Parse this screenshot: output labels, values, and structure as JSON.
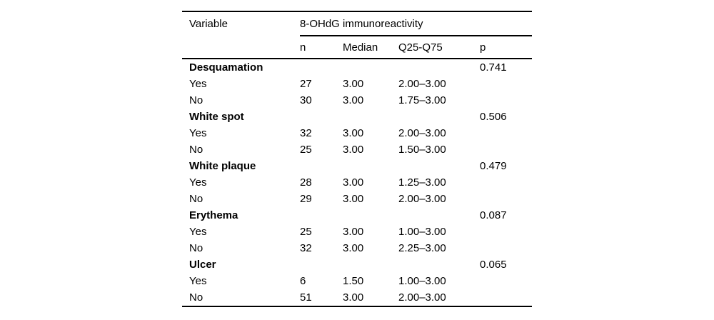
{
  "table": {
    "headers": {
      "variable": "Variable",
      "group": "8-OHdG immunoreactivity",
      "n": "n",
      "median": "Median",
      "q": "Q25-Q75",
      "p": "p"
    },
    "rows": [
      {
        "label": "Desquamation",
        "bold": true,
        "n": "",
        "median": "",
        "q": "",
        "p": "0.741"
      },
      {
        "label": "Yes",
        "bold": false,
        "n": "27",
        "median": "3.00",
        "q": "2.00–3.00",
        "p": ""
      },
      {
        "label": "No",
        "bold": false,
        "n": "30",
        "median": "3.00",
        "q": "1.75–3.00",
        "p": ""
      },
      {
        "label": "White spot",
        "bold": true,
        "n": "",
        "median": "",
        "q": "",
        "p": "0.506"
      },
      {
        "label": "Yes",
        "bold": false,
        "n": "32",
        "median": "3.00",
        "q": "2.00–3.00",
        "p": ""
      },
      {
        "label": "No",
        "bold": false,
        "n": "25",
        "median": "3.00",
        "q": "1.50–3.00",
        "p": ""
      },
      {
        "label": "White plaque",
        "bold": true,
        "n": "",
        "median": "",
        "q": "",
        "p": "0.479"
      },
      {
        "label": "Yes",
        "bold": false,
        "n": "28",
        "median": "3.00",
        "q": "1.25–3.00",
        "p": ""
      },
      {
        "label": "No",
        "bold": false,
        "n": "29",
        "median": "3.00",
        "q": "2.00–3.00",
        "p": ""
      },
      {
        "label": "Erythema",
        "bold": true,
        "n": "",
        "median": "",
        "q": "",
        "p": "0.087"
      },
      {
        "label": "Yes",
        "bold": false,
        "n": "25",
        "median": "3.00",
        "q": "1.00–3.00",
        "p": ""
      },
      {
        "label": "No",
        "bold": false,
        "n": "32",
        "median": "3.00",
        "q": "2.25–3.00",
        "p": ""
      },
      {
        "label": "Ulcer",
        "bold": true,
        "n": "",
        "median": "",
        "q": "",
        "p": "0.065"
      },
      {
        "label": "Yes",
        "bold": false,
        "n": "6",
        "median": "1.50",
        "q": "1.00–3.00",
        "p": ""
      },
      {
        "label": "No",
        "bold": false,
        "n": "51",
        "median": "3.00",
        "q": "2.00–3.00",
        "p": ""
      }
    ],
    "colors": {
      "rule": "#000000",
      "text": "#000000",
      "background": "#ffffff"
    }
  }
}
